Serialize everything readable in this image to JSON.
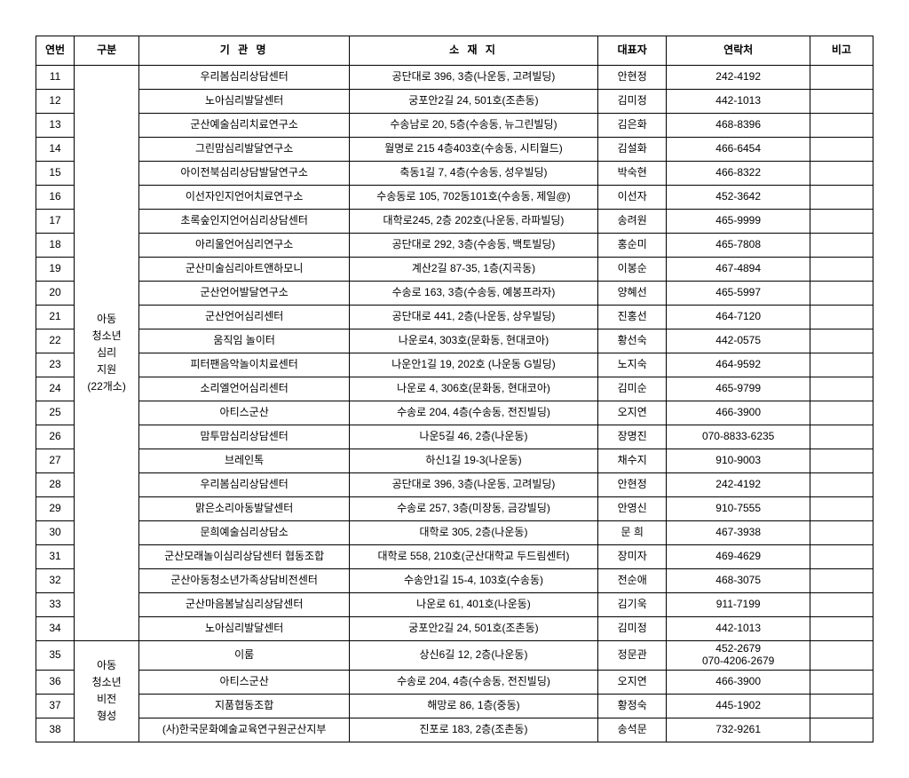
{
  "header": {
    "no": "연번",
    "category": "구분",
    "org": "기 관 명",
    "addr": "소 재 지",
    "rep": "대표자",
    "tel": "연락처",
    "note": "비고"
  },
  "groups": [
    {
      "label": "아동<br>청소년<br>심리<br>지원<br>(22개소)",
      "rows": [
        {
          "no": "11",
          "org": "우리봄심리상담센터",
          "addr": "공단대로 396, 3층(나운동, 고려빌딩)",
          "rep": "안현정",
          "tel": "242-4192"
        },
        {
          "no": "12",
          "org": "노아심리발달센터",
          "addr": "궁포안2길 24, 501호(조촌동)",
          "rep": "김미정",
          "tel": "442-1013"
        },
        {
          "no": "13",
          "org": "군산예술심리치료연구소",
          "addr": "수송남로 20, 5층(수송동, 뉴그린빌딩)",
          "rep": "김은화",
          "tel": "468-8396"
        },
        {
          "no": "14",
          "org": "그린맘심리발달연구소",
          "addr": "월명로 215 4층403호(수송동, 시티월드)",
          "rep": "김설화",
          "tel": "466-6454"
        },
        {
          "no": "15",
          "org": "아이전북심리상담발달연구소",
          "addr": "축동1길 7, 4층(수송동, 성우빌딩)",
          "rep": "박숙현",
          "tel": "466-8322"
        },
        {
          "no": "16",
          "org": "이선자인지언어치료연구소",
          "addr": "수송동로 105, 702동101호(수송동, 제일@)",
          "rep": "이선자",
          "tel": "452-3642"
        },
        {
          "no": "17",
          "org": "초록숲인지언어심리상담센터",
          "addr": "대학로245, 2층 202호(나운동, 라파빌딩)",
          "rep": "송려원",
          "tel": "465-9999"
        },
        {
          "no": "18",
          "org": "아리울언어심리연구소",
          "addr": "공단대로 292, 3층(수송동, 백토빌딩)",
          "rep": "홍순미",
          "tel": "465-7808"
        },
        {
          "no": "19",
          "org": "군산미술심리아트앤하모니",
          "addr": "계산2길 87-35, 1층(지곡동)",
          "rep": "이봉순",
          "tel": "467-4894"
        },
        {
          "no": "20",
          "org": "군산언어발달연구소",
          "addr": "수송로 163, 3층(수송동, 예봉프라자)",
          "rep": "양혜선",
          "tel": "465-5997"
        },
        {
          "no": "21",
          "org": "군산언어심리센터",
          "addr": "공단대로 441, 2층(나운동, 상우빌딩)",
          "rep": "진홍선",
          "tel": "464-7120"
        },
        {
          "no": "22",
          "org": "움직임 놀이터",
          "addr": "나운로4, 303호(문화동, 현대코아)",
          "rep": "황선숙",
          "tel": "442-0575"
        },
        {
          "no": "23",
          "org": "피터팬음악놀이치료센터",
          "addr": "나운안1길 19, 202호 (나운동 G빌딩)",
          "rep": "노지숙",
          "tel": "464-9592"
        },
        {
          "no": "24",
          "org": "소리엘언어심리센터",
          "addr": "나운로 4, 306호(문화동, 현대코아)",
          "rep": "김미순",
          "tel": "465-9799"
        },
        {
          "no": "25",
          "org": "아티스군산",
          "addr": "수송로 204, 4층(수송동, 전진빌딩)",
          "rep": "오지연",
          "tel": "466-3900"
        },
        {
          "no": "26",
          "org": "맘투맘심리상담센터",
          "addr": "나운5길 46, 2층(나운동)",
          "rep": "장명진",
          "tel": "070-8833-6235"
        },
        {
          "no": "27",
          "org": "브레인톡",
          "addr": "하신1길 19-3(나운동)",
          "rep": "채수지",
          "tel": "910-9003"
        },
        {
          "no": "28",
          "org": "우리봄심리상담센터",
          "addr": "공단대로 396, 3층(나운동, 고려빌딩)",
          "rep": "안현정",
          "tel": "242-4192"
        },
        {
          "no": "29",
          "org": "맑은소리아동발달센터",
          "addr": "수송로 257, 3층(미장동, 금강빌딩)",
          "rep": "안영신",
          "tel": "910-7555"
        },
        {
          "no": "30",
          "org": "문희예술심리상담소",
          "addr": "대학로 305, 2층(나운동)",
          "rep": "문 희",
          "tel": "467-3938"
        },
        {
          "no": "31",
          "org": "군산모래놀이심리상담센터 협동조합",
          "addr": "대학로 558, 210호(군산대학교 두드림센터)",
          "rep": "장미자",
          "tel": "469-4629"
        },
        {
          "no": "32",
          "org": "군산아동청소년가족상담비전센터",
          "addr": "수송안1길 15-4, 103호(수송동)",
          "rep": "전순애",
          "tel": "468-3075"
        },
        {
          "no": "33",
          "org": "군산마음봄날심리상담센터",
          "addr": "나운로 61, 401호(나운동)",
          "rep": "김기욱",
          "tel": "911-7199"
        },
        {
          "no": "34",
          "org": "노아심리발달센터",
          "addr": "궁포안2길 24, 501호(조촌동)",
          "rep": "김미정",
          "tel": "442-1013"
        }
      ]
    },
    {
      "label": "아동<br>청소년<br>비전<br>형성",
      "rows": [
        {
          "no": "35",
          "org": "이룸",
          "addr": "상신6길 12, 2층(나운동)",
          "rep": "정문관",
          "tel": "452-2679<br>070-4206-2679"
        },
        {
          "no": "36",
          "org": "아티스군산",
          "addr": "수송로 204, 4층(수송동, 전진빌딩)",
          "rep": "오지연",
          "tel": "466-3900"
        },
        {
          "no": "37",
          "org": "지품협동조합",
          "addr": "해망로 86, 1층(중동)",
          "rep": "황정숙",
          "tel": "445-1902"
        },
        {
          "no": "38",
          "org": "(사)한국문화예술교육연구원군산지부",
          "addr": "진포로 183, 2층(조촌동)",
          "rep": "송석문",
          "tel": "732-9261"
        }
      ]
    }
  ]
}
